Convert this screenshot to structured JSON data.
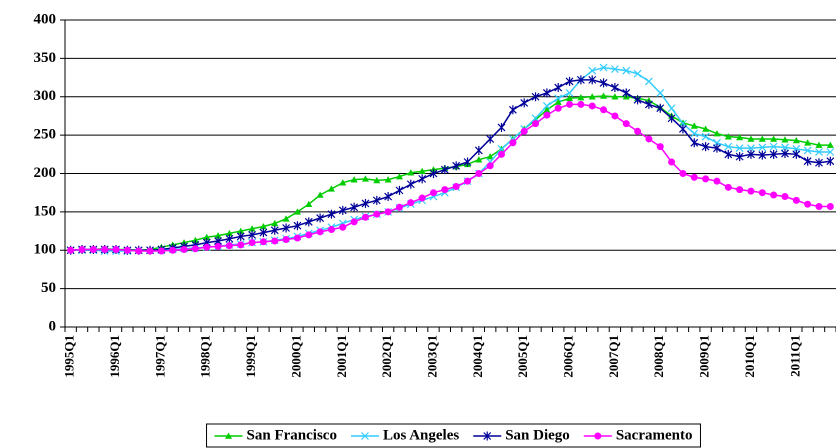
{
  "chart_data": {
    "type": "line",
    "categories": [
      "1995Q1",
      null,
      null,
      null,
      "1996Q1",
      null,
      null,
      null,
      "1997Q1",
      null,
      null,
      null,
      "1998Q1",
      null,
      null,
      null,
      "1999Q1",
      null,
      null,
      null,
      "2000Q1",
      null,
      null,
      null,
      "2001Q1",
      null,
      null,
      null,
      "2002Q1",
      null,
      null,
      null,
      "2003Q1",
      null,
      null,
      null,
      "2004Q1",
      null,
      null,
      null,
      "2005Q1",
      null,
      null,
      null,
      "2006Q1",
      null,
      null,
      null,
      "2007Q1",
      null,
      null,
      null,
      "2008Q1",
      null,
      null,
      null,
      "2009Q1",
      null,
      null,
      null,
      "2010Q1",
      null,
      null,
      null,
      "2011Q1",
      null,
      null,
      null
    ],
    "series": [
      {
        "name": "San Francisco",
        "color": "#00cc00",
        "marker": "triangle",
        "values": [
          100,
          101,
          101,
          102,
          101,
          101,
          100,
          101,
          104,
          107,
          110,
          113,
          117,
          119,
          122,
          125,
          128,
          131,
          135,
          141,
          150,
          160,
          172,
          180,
          188,
          192,
          193,
          191,
          192,
          196,
          201,
          203,
          205,
          207,
          209,
          212,
          218,
          222,
          232,
          245,
          258,
          270,
          283,
          293,
          298,
          299,
          300,
          301,
          300,
          300,
          298,
          295,
          286,
          275,
          266,
          262,
          258,
          252,
          248,
          247,
          245,
          245,
          245,
          244,
          243,
          240,
          237,
          237
        ]
      },
      {
        "name": "Los Angeles",
        "color": "#33ccff",
        "marker": "x",
        "values": [
          100,
          100,
          100,
          99,
          99,
          99,
          100,
          100,
          100,
          101,
          102,
          103,
          104,
          105,
          107,
          108,
          110,
          111,
          113,
          115,
          118,
          122,
          126,
          130,
          135,
          140,
          144,
          147,
          150,
          155,
          160,
          165,
          170,
          175,
          182,
          190,
          200,
          215,
          232,
          245,
          258,
          272,
          288,
          298,
          305,
          322,
          334,
          338,
          336,
          334,
          330,
          320,
          305,
          285,
          265,
          252,
          248,
          240,
          235,
          233,
          233,
          234,
          235,
          234,
          232,
          230,
          228,
          228
        ]
      },
      {
        "name": "San Diego",
        "color": "#000099",
        "marker": "star",
        "values": [
          100,
          101,
          101,
          101,
          101,
          100,
          100,
          100,
          101,
          103,
          105,
          107,
          110,
          112,
          115,
          118,
          120,
          123,
          126,
          129,
          132,
          137,
          142,
          147,
          152,
          156,
          161,
          165,
          170,
          178,
          186,
          193,
          200,
          205,
          210,
          215,
          230,
          245,
          260,
          283,
          292,
          300,
          305,
          312,
          320,
          322,
          322,
          318,
          312,
          305,
          296,
          290,
          285,
          272,
          258,
          240,
          235,
          233,
          225,
          222,
          225,
          224,
          225,
          226,
          225,
          216,
          214,
          216
        ]
      },
      {
        "name": "Sacramento",
        "color": "#ff00ff",
        "marker": "circle",
        "values": [
          100,
          101,
          101,
          101,
          101,
          100,
          99,
          99,
          99,
          100,
          101,
          102,
          104,
          105,
          106,
          107,
          110,
          111,
          112,
          114,
          116,
          120,
          124,
          127,
          130,
          137,
          143,
          147,
          150,
          156,
          162,
          168,
          175,
          179,
          183,
          190,
          200,
          210,
          225,
          240,
          255,
          265,
          276,
          285,
          290,
          290,
          288,
          283,
          275,
          265,
          255,
          245,
          235,
          215,
          200,
          195,
          193,
          190,
          182,
          179,
          177,
          175,
          172,
          170,
          165,
          160,
          157,
          157
        ]
      }
    ],
    "ylim": [
      0,
      400
    ],
    "yticks": [
      0,
      50,
      100,
      150,
      200,
      250,
      300,
      350,
      400
    ],
    "grid": true,
    "legend": "bottom"
  }
}
